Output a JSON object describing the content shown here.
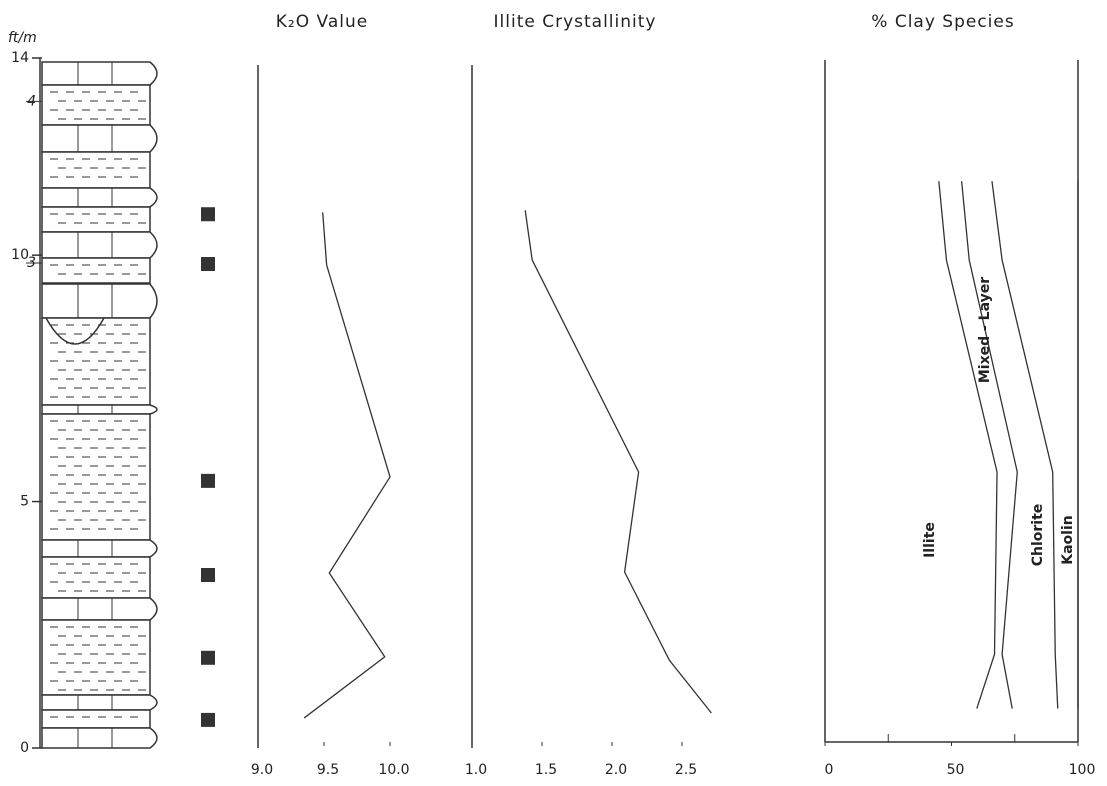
{
  "chart_data": [
    {
      "type": "strat-column",
      "y_label": "ft/m",
      "ylim": [
        0,
        14
      ],
      "yticks": [
        0,
        5,
        10,
        14
      ],
      "y2ticks": [
        {
          "value": 9.84,
          "label": "3"
        },
        {
          "value": 13.12,
          "label": "4"
        }
      ],
      "sample_depths": [
        10.83,
        9.82,
        5.42,
        3.51,
        1.83,
        0.57
      ]
    },
    {
      "type": "line",
      "title": "K₂O Value",
      "xlim": [
        9,
        10
      ],
      "xticks": [
        {
          "value": 9,
          "label": "9.0"
        },
        9.5,
        {
          "value": 10,
          "label": "10.0"
        }
      ],
      "values": [
        9.49,
        9.52,
        10.0,
        9.54,
        9.96,
        9.35
      ],
      "depths": [
        10.87,
        9.8,
        5.5,
        3.55,
        1.85,
        0.61
      ],
      "color": "#333333"
    },
    {
      "type": "line",
      "title": "Illite Crystallinity",
      "xlim": [
        1,
        2.5
      ],
      "xticks": [
        {
          "value": 1,
          "label": "1.0"
        },
        1.5,
        {
          "value": 2,
          "label": "2.0"
        },
        2.5
      ],
      "values": [
        1.38,
        1.43,
        2.19,
        2.09,
        2.41,
        2.71
      ],
      "depths": [
        10.91,
        9.9,
        5.6,
        3.57,
        1.78,
        0.71
      ],
      "color": "#333333"
    },
    {
      "type": "stacked-line",
      "title": "% Clay Species",
      "xlim": [
        0,
        100
      ],
      "xticks": [
        0,
        50,
        100
      ],
      "xminor_ticks": [
        25,
        75
      ],
      "depths": [
        11.5,
        9.9,
        5.6,
        1.9,
        0.8
      ],
      "series": [
        {
          "name": "Illite",
          "color": "#333333",
          "values": [
            45,
            48,
            68,
            67,
            60
          ]
        },
        {
          "name": "Mixed - Layer",
          "color": "#333333",
          "values": [
            9,
            9,
            8,
            3,
            14
          ]
        },
        {
          "name": "Chlorite",
          "color": "#333333",
          "values": [
            12,
            13,
            14,
            21,
            18
          ]
        },
        {
          "name": "Kaolin",
          "color": "#333333",
          "values": [
            34,
            30,
            10,
            9,
            8
          ]
        }
      ]
    }
  ]
}
